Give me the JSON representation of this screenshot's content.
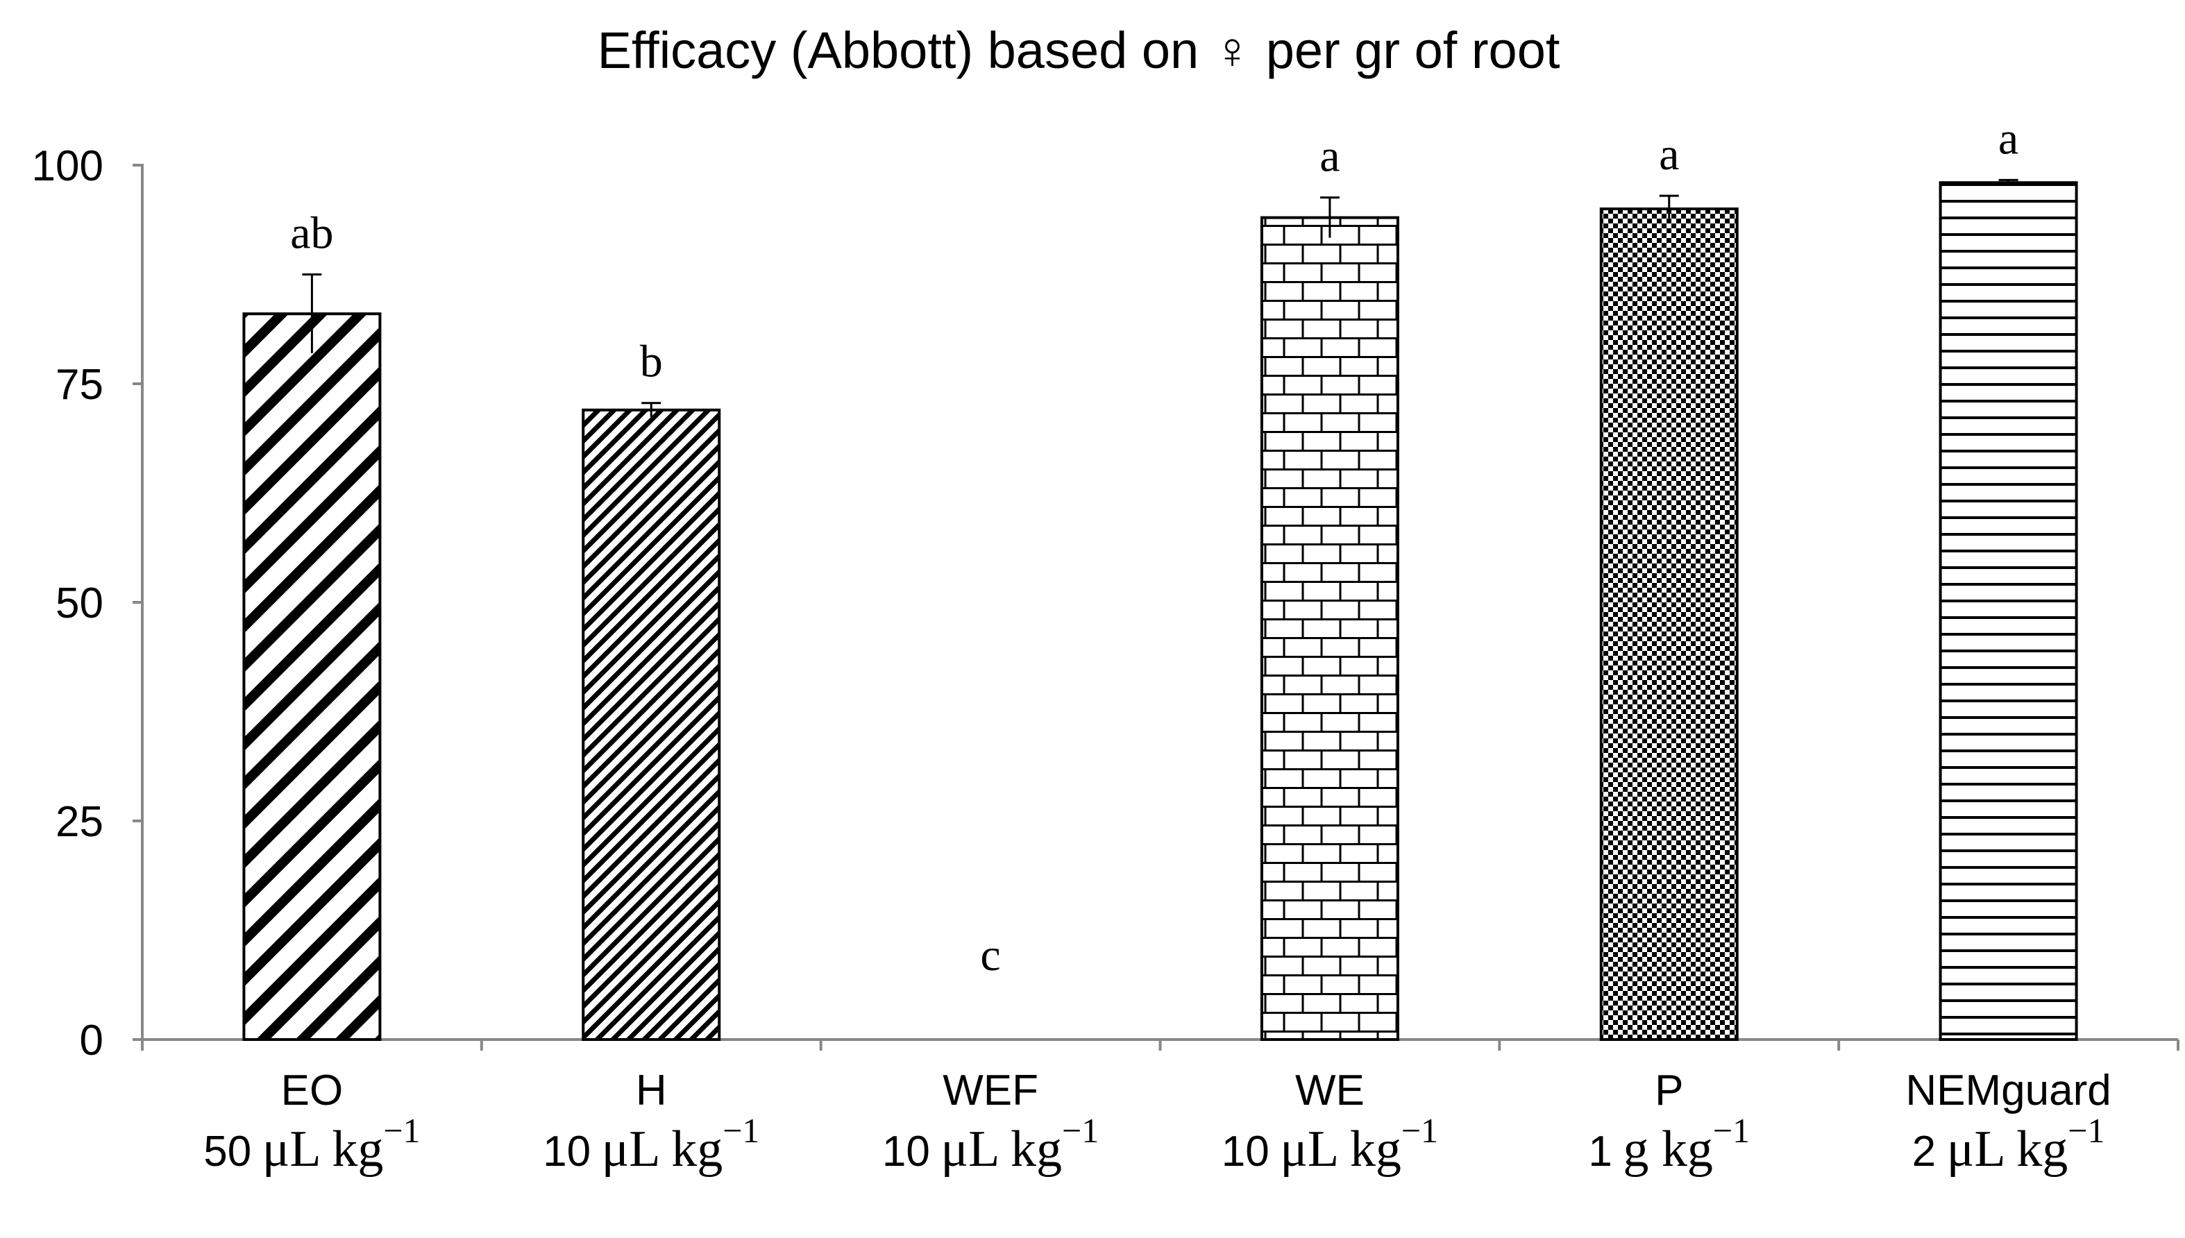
{
  "chart_data": {
    "type": "bar",
    "title": "Efficacy (Abbott) based on ♀ per gr of root",
    "xlabel": "",
    "ylabel": "",
    "ylim": [
      0,
      100
    ],
    "yticks": [
      0,
      25,
      50,
      75,
      100
    ],
    "grid": false,
    "legend": "none",
    "categories": [
      {
        "name": "EO",
        "dose_value": "50",
        "dose_unit": "μL kg",
        "dose_exp": "−1"
      },
      {
        "name": "H",
        "dose_value": "10",
        "dose_unit": "μL kg",
        "dose_exp": "−1"
      },
      {
        "name": "WEF",
        "dose_value": "10",
        "dose_unit": "μL kg",
        "dose_exp": "−1"
      },
      {
        "name": "WE",
        "dose_value": "10",
        "dose_unit": "μL kg",
        "dose_exp": "−1"
      },
      {
        "name": "P",
        "dose_value": "1",
        "dose_unit": "g kg",
        "dose_exp": "−1"
      },
      {
        "name": "NEMguard",
        "dose_value": "2",
        "dose_unit": "μL kg",
        "dose_exp": "−1"
      }
    ],
    "values": [
      83,
      72,
      0,
      94,
      95,
      98
    ],
    "errors": [
      4.5,
      0.8,
      0,
      2.3,
      1.5,
      0.3
    ],
    "significance_letters": [
      "ab",
      "b",
      "c",
      "a",
      "a",
      "a"
    ],
    "patterns": [
      "diagonal-wide",
      "diagonal-dense",
      "none",
      "brick",
      "checker",
      "horizontal-lines"
    ]
  }
}
